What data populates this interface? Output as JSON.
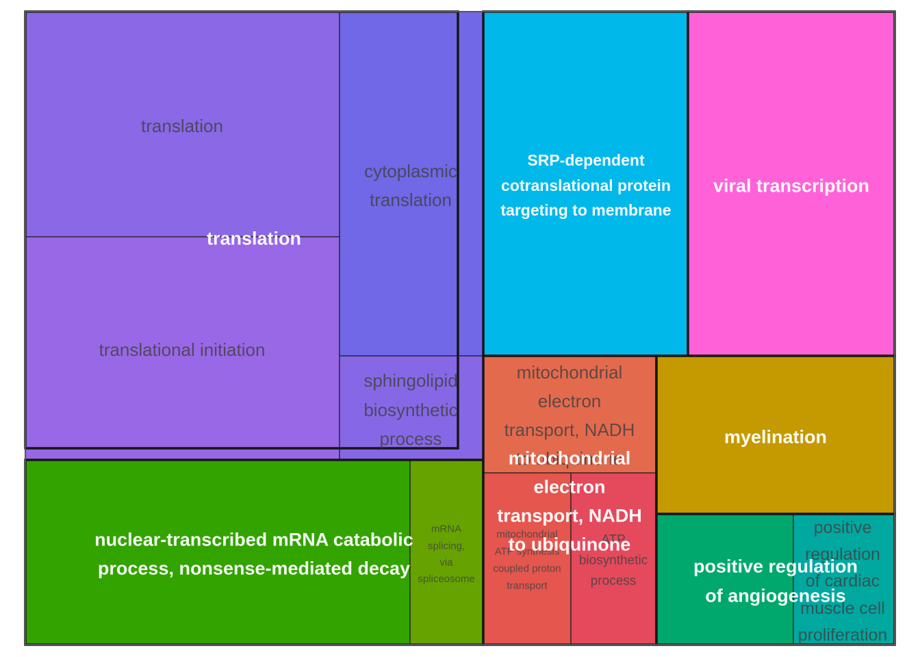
{
  "chart_data": {
    "type": "treemap",
    "groups": [
      {
        "name": "translation",
        "color": "#8E66E6",
        "children": [
          {
            "name": "translation",
            "color": "#8A68E6"
          },
          {
            "name": "translational initiation",
            "color": "#9868E6"
          },
          {
            "name": "cytoplasmic translation",
            "color": "#7068E6"
          },
          {
            "name": "sphingolipid biosynthetic process",
            "color": "#8668E6"
          }
        ]
      },
      {
        "name": "SRP-dependent cotranslational protein targeting to membrane",
        "color": "#00B8EA",
        "children": [
          {
            "name": "SRP-dependent cotranslational protein targeting to membrane",
            "color": "#00B8EA"
          }
        ]
      },
      {
        "name": "viral transcription",
        "color": "#FF62D8",
        "children": [
          {
            "name": "viral transcription",
            "color": "#FF62D8"
          }
        ]
      },
      {
        "name": "nuclear-transcribed mRNA catabolic process, nonsense-mediated decay",
        "color": "#33A300",
        "children": [
          {
            "name": "nuclear-transcribed mRNA catabolic process, nonsense-mediated decay",
            "color": "#33A300"
          },
          {
            "name": "mRNA splicing, via spliceosome",
            "color": "#66A300"
          }
        ]
      },
      {
        "name": "mitochondrial electron transport, NADH to ubiquinone",
        "color": "#E45A4E",
        "children": [
          {
            "name": "mitochondrial electron transport, NADH to ubiquinone",
            "color": "#E46A4E"
          },
          {
            "name": "mitochondrial ATP synthesis coupled proton transport",
            "color": "#E4564E"
          },
          {
            "name": "ATP biosynthetic process",
            "color": "#E44A5C"
          }
        ]
      },
      {
        "name": "myelination",
        "color": "#C49A00",
        "children": [
          {
            "name": "myelination",
            "color": "#C49A00"
          }
        ]
      },
      {
        "name": "positive regulation of angiogenesis",
        "color": "#00A87A",
        "children": [
          {
            "name": "positive regulation of angiogenesis",
            "color": "#00A86E"
          },
          {
            "name": "positive regulation of cardiac muscle cell proliferation",
            "color": "#00A8A0"
          }
        ]
      }
    ]
  }
}
